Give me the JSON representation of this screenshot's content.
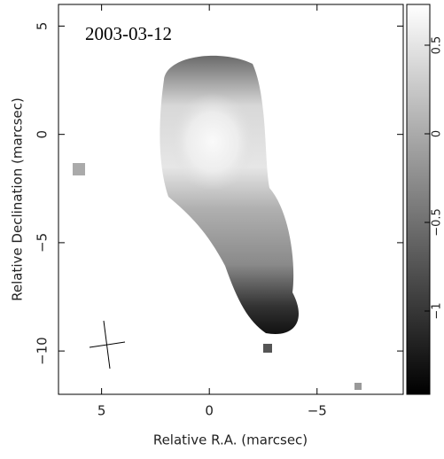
{
  "chart_data": {
    "type": "heatmap",
    "title": "2003-03-12",
    "x_label": "Relative R.A. (marcsec)",
    "y_label": "Relative Declination (marcsec)",
    "xlim": [
      7,
      -9
    ],
    "xticks": [
      5,
      0,
      {
        "value": -5,
        "label": "−5"
      }
    ],
    "ylim": [
      -12,
      6
    ],
    "yticks": [
      {
        "value": -10,
        "label": "−10"
      },
      {
        "value": -5,
        "label": "−5"
      },
      0,
      5
    ],
    "colorbar": {
      "lim": [
        -1.47,
        0.73
      ],
      "ticks": [
        {
          "value": -1,
          "label": "−1"
        },
        {
          "value": -0.5,
          "label": "−0.5"
        },
        0,
        0.5
      ],
      "colors": [
        "#000000",
        "#ffffff"
      ]
    }
  }
}
